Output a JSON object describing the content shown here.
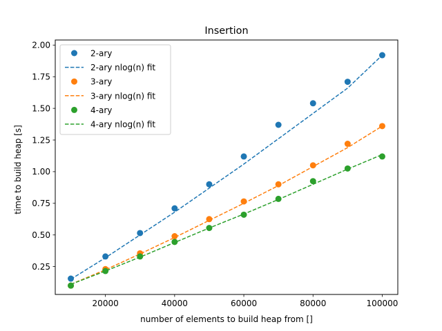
{
  "chart_data": {
    "type": "scatter",
    "title": "Insertion",
    "xlabel": "number of elements to build heap from []",
    "ylabel": "time to build heap [s]",
    "xlim": [
      5500,
      104500
    ],
    "ylim": [
      0.03,
      2.04
    ],
    "xticks": [
      20000,
      40000,
      60000,
      80000,
      100000
    ],
    "xtick_labels": [
      "20000",
      "40000",
      "60000",
      "80000",
      "100000"
    ],
    "yticks": [
      0.25,
      0.5,
      0.75,
      1.0,
      1.25,
      1.5,
      1.75,
      2.0
    ],
    "ytick_labels": [
      "0.25",
      "0.50",
      "0.75",
      "1.00",
      "1.25",
      "1.50",
      "1.75",
      "2.00"
    ],
    "grid": false,
    "legend_position": "top-left",
    "x": [
      10000,
      20000,
      30000,
      40000,
      50000,
      60000,
      70000,
      80000,
      90000,
      100000
    ],
    "series": [
      {
        "name": "2-ary",
        "kind": "points",
        "color": "#1f77b4",
        "values": [
          0.155,
          0.33,
          0.515,
          0.71,
          0.9,
          1.12,
          1.37,
          1.54,
          1.71,
          1.92
        ]
      },
      {
        "name": "2-ary nlog(n) fit",
        "kind": "fit",
        "color": "#1f77b4",
        "values": [
          0.15,
          0.32,
          0.5,
          0.68,
          0.87,
          1.06,
          1.26,
          1.46,
          1.66,
          1.92
        ]
      },
      {
        "name": "3-ary",
        "kind": "points",
        "color": "#ff7f0e",
        "values": [
          0.1,
          0.23,
          0.355,
          0.49,
          0.625,
          0.765,
          0.9,
          1.05,
          1.22,
          1.36
        ]
      },
      {
        "name": "3-ary nlog(n) fit",
        "kind": "fit",
        "color": "#ff7f0e",
        "values": [
          0.11,
          0.225,
          0.35,
          0.48,
          0.615,
          0.75,
          0.89,
          1.04,
          1.19,
          1.36
        ]
      },
      {
        "name": "4-ary",
        "kind": "points",
        "color": "#2ca02c",
        "values": [
          0.1,
          0.215,
          0.33,
          0.445,
          0.555,
          0.66,
          0.785,
          0.925,
          1.025,
          1.12
        ]
      },
      {
        "name": "4-ary nlog(n) fit",
        "kind": "fit",
        "color": "#2ca02c",
        "values": [
          0.11,
          0.215,
          0.325,
          0.44,
          0.555,
          0.665,
          0.78,
          0.9,
          1.02,
          1.135
        ]
      }
    ]
  }
}
